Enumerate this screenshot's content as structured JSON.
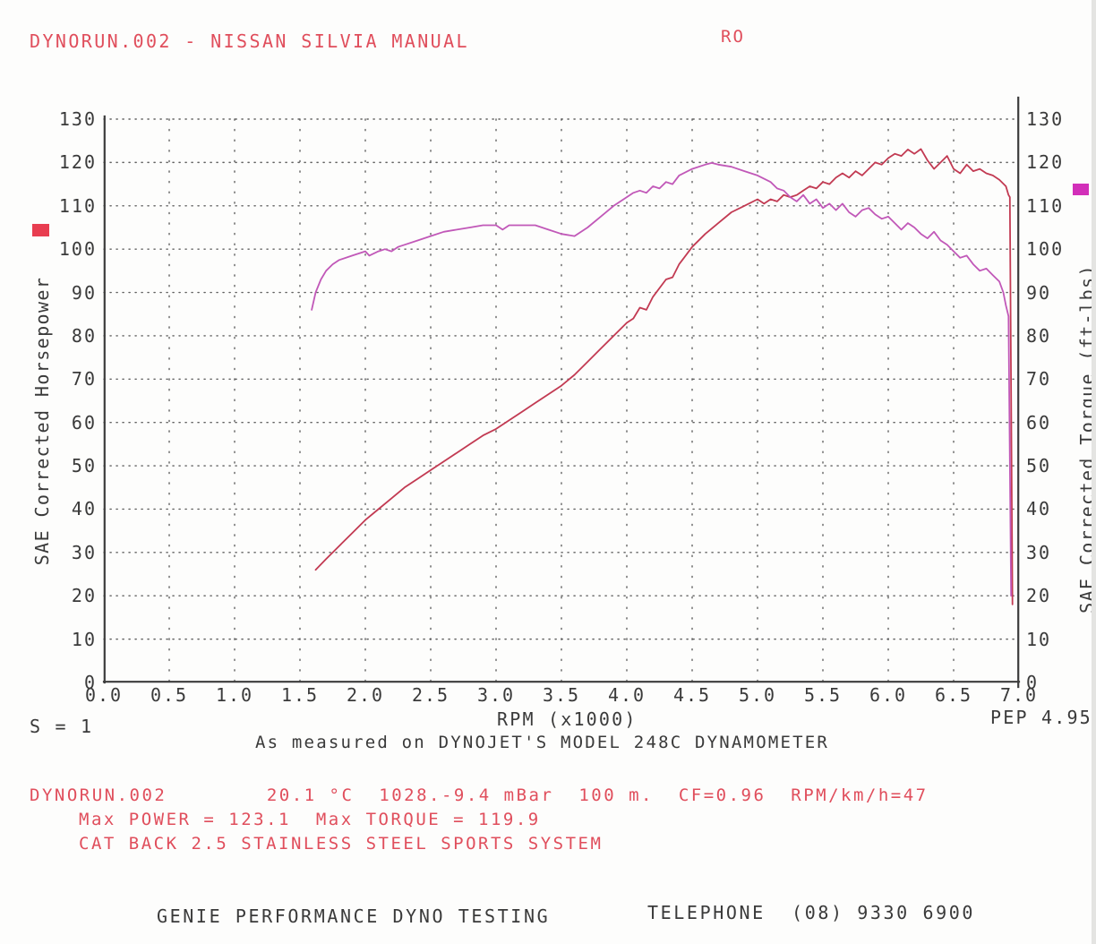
{
  "title": "DYNORUN.002 - NISSAN SILVIA MANUAL",
  "run_label": "RO",
  "footnotes": {
    "s_note": "S = 1",
    "pep_note": "PEP 4.95",
    "measured_note": "As measured on DYNOJET'S MODEL 248C DYNAMOMETER"
  },
  "results": {
    "line1": "DYNORUN.002        20.1 °C  1028.-9.4 mBar  100 m.  CF=0.96  RPM/km/h=47",
    "line2": "Max POWER = 123.1  Max TORQUE = 119.9",
    "line3": "CAT BACK 2.5 STAINLESS STEEL SPORTS SYSTEM"
  },
  "footer": {
    "company": "GENIE PERFORMANCE DYNO TESTING",
    "phone": "TELEPHONE  (08) 9330 6900"
  },
  "colors": {
    "red_text": "#e04e5c",
    "black_text": "#3a3a3a",
    "power_curve": "#c23a52",
    "torque_curve": "#c158b8",
    "power_marker": "#e83d50",
    "torque_marker": "#d22fb9",
    "grid": "#454545"
  },
  "chart_data": {
    "type": "line",
    "title": "DYNORUN.002 - NISSAN SILVIA MANUAL",
    "xlabel": "RPM (x1000)",
    "ylabel_left": "SAE Corrected Horsepower",
    "ylabel_right": "SAE Corrected Torque (ft-lbs)",
    "xlim": [
      0,
      7
    ],
    "ylim": [
      0,
      130
    ],
    "x_tick_step": 0.5,
    "y_tick_step": 10,
    "grid": "dotted",
    "x_ticks": [
      "0.0",
      "0.5",
      "1.0",
      "1.5",
      "2.0",
      "2.5",
      "3.0",
      "3.5",
      "4.0",
      "4.5",
      "5.0",
      "5.5",
      "6.0",
      "6.5",
      "7.0"
    ],
    "y_ticks": [
      0,
      10,
      20,
      30,
      40,
      50,
      60,
      70,
      80,
      90,
      100,
      110,
      120,
      130
    ],
    "series": [
      {
        "name": "power",
        "label": "SAE Corrected Horsepower",
        "axis": "left",
        "color": "#c23a52",
        "peak": 123.1,
        "points": [
          [
            1.62,
            26
          ],
          [
            1.7,
            28.5
          ],
          [
            1.8,
            31.5
          ],
          [
            1.9,
            34.5
          ],
          [
            2.0,
            37.5
          ],
          [
            2.1,
            40
          ],
          [
            2.2,
            42.5
          ],
          [
            2.3,
            45
          ],
          [
            2.4,
            47
          ],
          [
            2.5,
            49
          ],
          [
            2.6,
            51
          ],
          [
            2.7,
            53
          ],
          [
            2.8,
            55
          ],
          [
            2.9,
            57
          ],
          [
            3.0,
            58.5
          ],
          [
            3.1,
            60.5
          ],
          [
            3.2,
            62.5
          ],
          [
            3.3,
            64.5
          ],
          [
            3.4,
            66.5
          ],
          [
            3.5,
            68.5
          ],
          [
            3.6,
            71
          ],
          [
            3.7,
            74
          ],
          [
            3.8,
            77
          ],
          [
            3.9,
            80
          ],
          [
            4.0,
            83
          ],
          [
            4.05,
            84
          ],
          [
            4.1,
            86.5
          ],
          [
            4.15,
            86
          ],
          [
            4.2,
            89
          ],
          [
            4.3,
            93
          ],
          [
            4.35,
            93.5
          ],
          [
            4.4,
            96.5
          ],
          [
            4.5,
            100.5
          ],
          [
            4.6,
            103.5
          ],
          [
            4.7,
            106
          ],
          [
            4.8,
            108.5
          ],
          [
            4.9,
            110
          ],
          [
            5.0,
            111.5
          ],
          [
            5.05,
            110.5
          ],
          [
            5.1,
            111.5
          ],
          [
            5.15,
            111
          ],
          [
            5.2,
            112.5
          ],
          [
            5.25,
            112
          ],
          [
            5.3,
            112.5
          ],
          [
            5.35,
            113.5
          ],
          [
            5.4,
            114.5
          ],
          [
            5.45,
            114
          ],
          [
            5.5,
            115.5
          ],
          [
            5.55,
            115
          ],
          [
            5.6,
            116.5
          ],
          [
            5.65,
            117.5
          ],
          [
            5.7,
            116.5
          ],
          [
            5.75,
            118
          ],
          [
            5.8,
            117
          ],
          [
            5.85,
            118.5
          ],
          [
            5.9,
            120
          ],
          [
            5.95,
            119.5
          ],
          [
            6.0,
            121
          ],
          [
            6.05,
            122
          ],
          [
            6.1,
            121.5
          ],
          [
            6.15,
            123
          ],
          [
            6.2,
            122
          ],
          [
            6.25,
            123.1
          ],
          [
            6.3,
            120.5
          ],
          [
            6.35,
            118.5
          ],
          [
            6.4,
            120
          ],
          [
            6.45,
            121.5
          ],
          [
            6.5,
            118.5
          ],
          [
            6.55,
            117.5
          ],
          [
            6.6,
            119.5
          ],
          [
            6.65,
            118
          ],
          [
            6.7,
            118.5
          ],
          [
            6.75,
            117.5
          ],
          [
            6.8,
            117
          ],
          [
            6.85,
            116
          ],
          [
            6.9,
            114.5
          ],
          [
            6.92,
            112.5
          ],
          [
            6.93,
            112
          ],
          [
            6.95,
            18
          ]
        ]
      },
      {
        "name": "torque",
        "label": "SAE Corrected Torque (ft-lbs)",
        "axis": "right",
        "color": "#c158b8",
        "peak": 119.9,
        "points": [
          [
            1.59,
            86
          ],
          [
            1.62,
            90
          ],
          [
            1.66,
            93
          ],
          [
            1.7,
            95
          ],
          [
            1.75,
            96.5
          ],
          [
            1.8,
            97.5
          ],
          [
            1.9,
            98.5
          ],
          [
            1.95,
            99
          ],
          [
            2.0,
            99.5
          ],
          [
            2.03,
            98.5
          ],
          [
            2.1,
            99.5
          ],
          [
            2.15,
            100
          ],
          [
            2.2,
            99.5
          ],
          [
            2.25,
            100.5
          ],
          [
            2.3,
            101
          ],
          [
            2.4,
            102
          ],
          [
            2.5,
            103
          ],
          [
            2.6,
            104
          ],
          [
            2.7,
            104.5
          ],
          [
            2.8,
            105
          ],
          [
            2.9,
            105.5
          ],
          [
            3.0,
            105.5
          ],
          [
            3.05,
            104.5
          ],
          [
            3.1,
            105.5
          ],
          [
            3.2,
            105.5
          ],
          [
            3.3,
            105.5
          ],
          [
            3.4,
            104.5
          ],
          [
            3.5,
            103.5
          ],
          [
            3.6,
            103
          ],
          [
            3.7,
            105
          ],
          [
            3.8,
            107.5
          ],
          [
            3.9,
            110
          ],
          [
            4.0,
            112
          ],
          [
            4.05,
            113
          ],
          [
            4.1,
            113.5
          ],
          [
            4.15,
            113
          ],
          [
            4.2,
            114.5
          ],
          [
            4.25,
            114
          ],
          [
            4.3,
            115.5
          ],
          [
            4.35,
            115
          ],
          [
            4.4,
            117
          ],
          [
            4.5,
            118.5
          ],
          [
            4.6,
            119.5
          ],
          [
            4.65,
            119.9
          ],
          [
            4.7,
            119.5
          ],
          [
            4.8,
            119
          ],
          [
            4.9,
            118
          ],
          [
            5.0,
            117
          ],
          [
            5.1,
            115.5
          ],
          [
            5.15,
            114
          ],
          [
            5.2,
            113.5
          ],
          [
            5.25,
            112
          ],
          [
            5.3,
            111
          ],
          [
            5.35,
            112.5
          ],
          [
            5.4,
            110.5
          ],
          [
            5.45,
            111.5
          ],
          [
            5.5,
            109.5
          ],
          [
            5.55,
            110.5
          ],
          [
            5.6,
            109
          ],
          [
            5.65,
            110.5
          ],
          [
            5.7,
            108.5
          ],
          [
            5.75,
            107.5
          ],
          [
            5.8,
            109
          ],
          [
            5.85,
            109.5
          ],
          [
            5.9,
            108
          ],
          [
            5.95,
            107
          ],
          [
            6.0,
            107.5
          ],
          [
            6.05,
            106
          ],
          [
            6.1,
            104.5
          ],
          [
            6.15,
            106
          ],
          [
            6.2,
            105
          ],
          [
            6.25,
            103.5
          ],
          [
            6.3,
            102.5
          ],
          [
            6.35,
            104
          ],
          [
            6.4,
            102
          ],
          [
            6.45,
            101
          ],
          [
            6.5,
            99.5
          ],
          [
            6.55,
            98
          ],
          [
            6.6,
            98.5
          ],
          [
            6.65,
            96.5
          ],
          [
            6.7,
            95
          ],
          [
            6.75,
            95.5
          ],
          [
            6.8,
            94
          ],
          [
            6.85,
            92.5
          ],
          [
            6.88,
            90
          ],
          [
            6.9,
            87
          ],
          [
            6.92,
            84.5
          ],
          [
            6.94,
            20
          ]
        ]
      }
    ]
  }
}
